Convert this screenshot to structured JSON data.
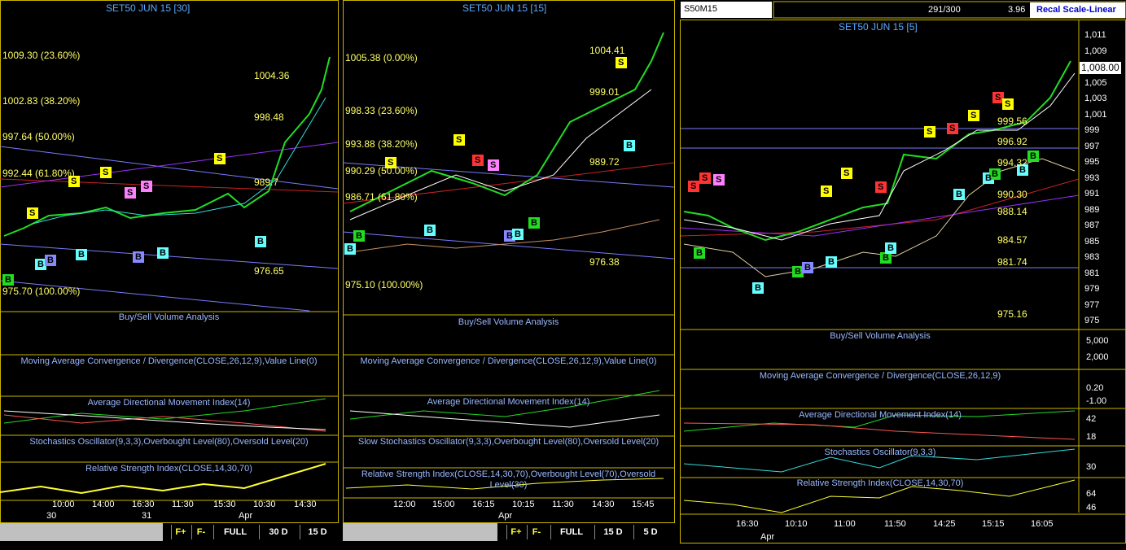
{
  "panels": [
    {
      "title": "SET50 JUN 15  [30]",
      "levels": [
        "1009.30 (23.60%)",
        "1002.83 (38.20%)",
        "997.64 (50.00%)",
        "992.44 (61.80%)",
        "975.70 (100.00%)"
      ],
      "annotations": [
        "1004.36",
        "998.48",
        "989.7",
        "976.65"
      ],
      "signals": [
        "S",
        "S",
        "S",
        "S",
        "S",
        "S",
        "B",
        "B",
        "B",
        "B",
        "B",
        "B",
        "B"
      ],
      "indicators": [
        "Buy/Sell Volume Analysis",
        "Moving Average Convergence / Divergence(CLOSE,26,12,9),Value Line(0)",
        "Average Directional Movement Index(14)",
        "Stochastics Oscillator(9,3,3),Overbought Level(80),Oversold Level(20)",
        "Relative Strength Index(CLOSE,14,30,70)"
      ],
      "x_labels": [
        "10:00",
        "14:00",
        "16:30",
        "11:30",
        "15:30",
        "10:30",
        "14:30"
      ],
      "date_labels": [
        "30",
        "31",
        "Apr"
      ],
      "buttons": [
        "F+",
        "F-",
        "FULL",
        "30 D",
        "15 D"
      ]
    },
    {
      "title": "SET50 JUN 15  [15]",
      "levels": [
        "1005.38 (0.00%)",
        "998.33 (23.60%)",
        "993.88 (38.20%)",
        "990.29 (50.00%)",
        "986.71 (61.80%)",
        "975.10 (100.00%)"
      ],
      "annotations": [
        "1004.41",
        "999.01",
        "989.72",
        "976.38"
      ],
      "signals": [
        "S",
        "S",
        "S",
        "S",
        "S",
        "B",
        "B",
        "B",
        "B",
        "B",
        "B",
        "B"
      ],
      "indicators": [
        "Buy/Sell Volume Analysis",
        "Moving Average Convergence / Divergence(CLOSE,26,12,9),Value Line(0)",
        "Average Directional Movement Index(14)",
        "Slow Stochastics Oscillator(9,3,3),Overbought Level(80),Oversold Level(20)",
        "Relative Strength Index(CLOSE,14,30,70),Overbought Level(70),Oversold Level(30)"
      ],
      "x_labels": [
        "12:00",
        "15:00",
        "16:15",
        "10:15",
        "11:30",
        "14:30",
        "15:45"
      ],
      "date_labels": [
        "Apr"
      ],
      "buttons": [
        "F+",
        "F-",
        "FULL",
        "15 D",
        "5 D"
      ]
    },
    {
      "toolbar": {
        "symbol": "S50M15",
        "count": "291/300",
        "value": "3.96",
        "button": "Recal Scale-Linear"
      },
      "title": "SET50 JUN 15  [5]",
      "price_ticks": [
        "1,011",
        "1,009",
        "1,005",
        "1,003",
        "1,001",
        "999",
        "997",
        "995",
        "993",
        "991",
        "989",
        "987",
        "985",
        "983",
        "981",
        "979",
        "977",
        "975"
      ],
      "current_price": "1,008.00",
      "annotations": [
        "999.56",
        "996.92",
        "994.32",
        "990.30",
        "988.14",
        "984.57",
        "981.74",
        "975.16"
      ],
      "signals": [
        "S",
        "S",
        "S",
        "S",
        "S",
        "S",
        "S",
        "S",
        "S",
        "S",
        "S",
        "B",
        "B",
        "B",
        "B",
        "B",
        "B",
        "B",
        "B",
        "B",
        "B",
        "B",
        "B"
      ],
      "indicators": [
        "Buy/Sell Volume Analysis",
        "Moving Average Convergence / Divergence(CLOSE,26,12,9)",
        "Average Directional Movement Index(14)",
        "Stochastics Oscillator(9,3,3)",
        "Relative Strength Index(CLOSE,14,30,70)"
      ],
      "indicator_ticks": [
        "5,000",
        "2,000",
        "0.20",
        "-1.00",
        "42",
        "18",
        "30",
        "64",
        "46"
      ],
      "x_labels": [
        "16:30",
        "10:10",
        "11:00",
        "11:50",
        "14:25",
        "15:15",
        "16:05"
      ],
      "date_labels": [
        "Apr"
      ]
    }
  ]
}
